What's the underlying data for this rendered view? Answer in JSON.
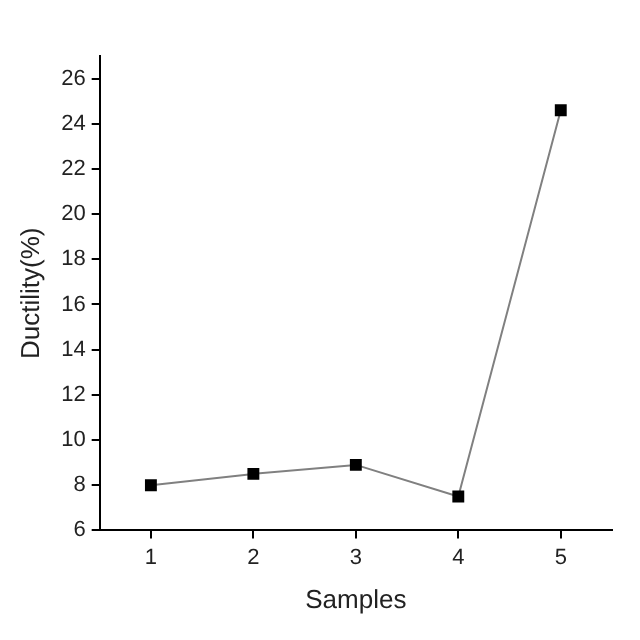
{
  "chart_data": {
    "type": "line",
    "xlabel": "Samples",
    "ylabel": "Ductility(%)",
    "x": [
      1,
      2,
      3,
      4,
      5
    ],
    "series": [
      {
        "color": "#808080",
        "values": [
          8,
          8.5,
          8.9,
          7.5,
          24.6
        ]
      }
    ],
    "xlim": [
      0.5,
      5.5
    ],
    "xticks": [
      1,
      2,
      3,
      4,
      5
    ],
    "ylim": [
      6,
      27
    ],
    "yticks": [
      6,
      8,
      10,
      12,
      14,
      16,
      18,
      20,
      22,
      24,
      26
    ],
    "grid": false,
    "legend": false,
    "marker": "square",
    "line_style": "solid"
  }
}
